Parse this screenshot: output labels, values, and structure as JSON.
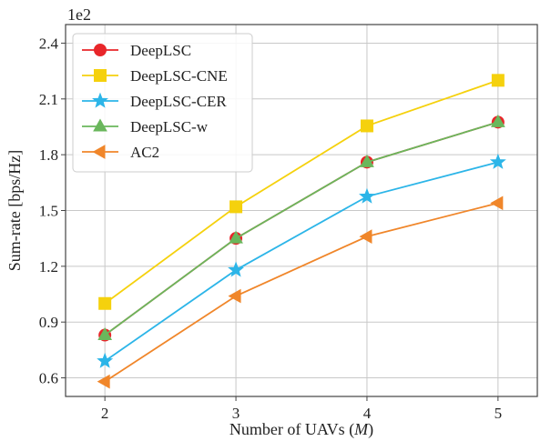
{
  "chart_data": {
    "type": "line",
    "title": "",
    "xlabel": "Number of UAVs (M)",
    "xlabel_plain": "Number of UAVs (",
    "xlabel_var": "M",
    "xlabel_close": ")",
    "ylabel": "Sum-rate [bps/Hz]",
    "y_multiplier": "1e2",
    "x": [
      2,
      3,
      4,
      5
    ],
    "xlim": [
      1.7,
      5.3
    ],
    "ylim": [
      0.5,
      2.5
    ],
    "yticks": [
      0.6,
      0.9,
      1.2,
      1.5,
      1.8,
      2.1,
      2.4
    ],
    "ytick_labels": [
      "0.6",
      "0.9",
      "1.2",
      "1.5",
      "1.8",
      "2.1",
      "2.4"
    ],
    "xtick_labels": [
      "2",
      "3",
      "4",
      "5"
    ],
    "grid": true,
    "legend_position": "top-left",
    "series": [
      {
        "name": "DeepLSC",
        "color": "#e8262a",
        "marker": "circle",
        "values": [
          0.83,
          1.35,
          1.76,
          1.975
        ]
      },
      {
        "name": "DeepLSC-CNE",
        "color": "#f5d10d",
        "marker": "square",
        "values": [
          1.0,
          1.52,
          1.955,
          2.2
        ]
      },
      {
        "name": "DeepLSC-CER",
        "color": "#2cb5e8",
        "marker": "star",
        "values": [
          0.69,
          1.18,
          1.575,
          1.76
        ]
      },
      {
        "name": "DeepLSC-w",
        "color": "#6ab75c",
        "marker": "triangle-up",
        "values": [
          0.83,
          1.35,
          1.76,
          1.975
        ]
      },
      {
        "name": "AC2",
        "color": "#f0862a",
        "marker": "triangle-left",
        "values": [
          0.58,
          1.04,
          1.36,
          1.54
        ]
      }
    ]
  }
}
